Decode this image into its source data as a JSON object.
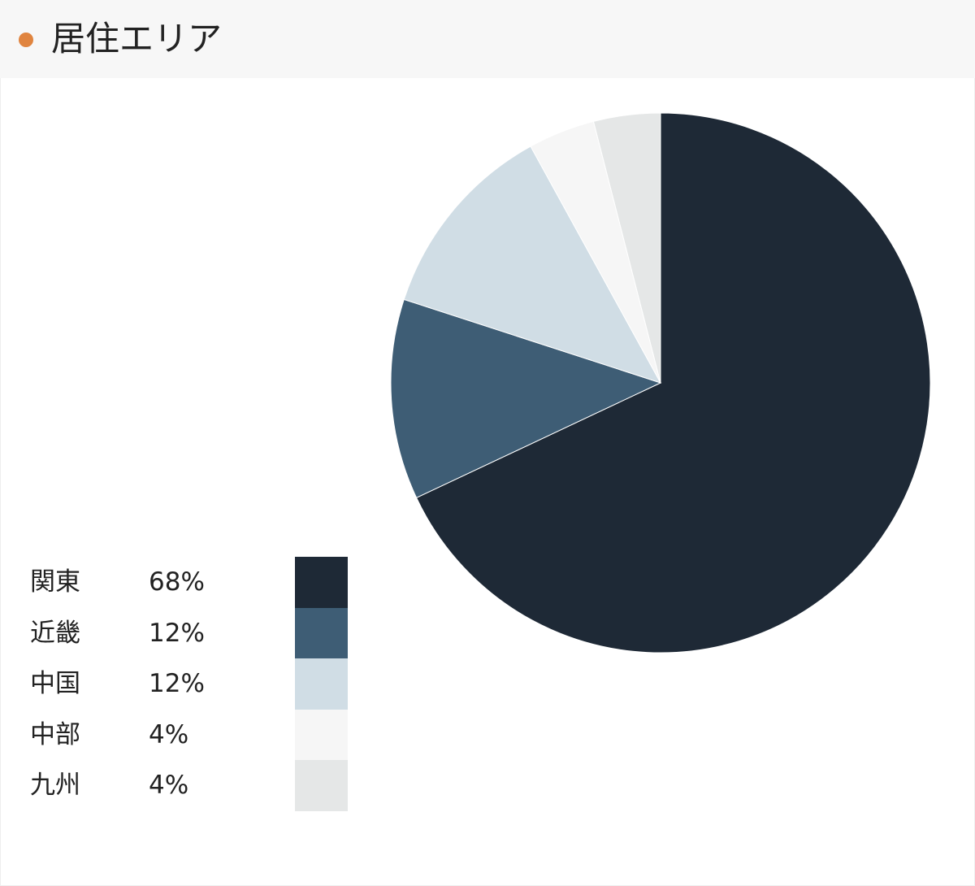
{
  "header": {
    "title": "居住エリア",
    "accent_color": "#e0843f"
  },
  "chart_data": {
    "type": "pie",
    "title": "居住エリア",
    "start_angle": "top",
    "direction": "clockwise",
    "legend_position": "bottom-left",
    "slices": [
      {
        "label": "関東",
        "value": 68,
        "display": "68%",
        "color": "#1e2936"
      },
      {
        "label": "近畿",
        "value": 12,
        "display": "12%",
        "color": "#3e5d75"
      },
      {
        "label": "中国",
        "value": 12,
        "display": "12%",
        "color": "#d0dde5"
      },
      {
        "label": "中部",
        "value": 4,
        "display": "4%",
        "color": "#f6f6f6"
      },
      {
        "label": "九州",
        "value": 4,
        "display": "4%",
        "color": "#e5e7e7"
      }
    ]
  }
}
